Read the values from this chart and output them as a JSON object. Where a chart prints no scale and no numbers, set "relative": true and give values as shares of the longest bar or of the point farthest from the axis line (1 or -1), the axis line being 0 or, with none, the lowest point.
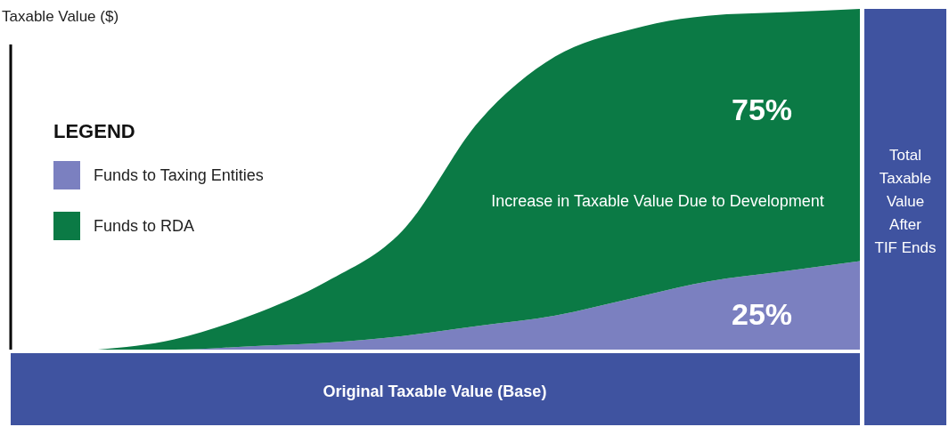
{
  "chart_data": {
    "type": "area",
    "stacked": true,
    "relative": true,
    "ylabel": "Taxable Value ($)",
    "legend_title": "LEGEND",
    "legend": "left",
    "categories": [
      null,
      null,
      null,
      null,
      null,
      null,
      null,
      null,
      null,
      null,
      null
    ],
    "series": [
      {
        "name": "Funds to Taxing Entities",
        "color": "#7b80c0",
        "values": [
          0,
          0,
          0.01,
          0.02,
          0.04,
          0.07,
          0.1,
          0.15,
          0.2,
          0.23,
          0.26
        ]
      },
      {
        "name": "Funds to RDA",
        "color": "#0b7a45",
        "values": [
          0,
          0.03,
          0.09,
          0.18,
          0.31,
          0.6,
          0.76,
          0.79,
          0.78,
          0.76,
          0.74
        ]
      }
    ],
    "annotations": [
      "75%",
      "Increase in Taxable Value Due to Development",
      "25%",
      "Original Taxable Value (Base)",
      "Total Taxable Value After TIF Ends"
    ]
  }
}
